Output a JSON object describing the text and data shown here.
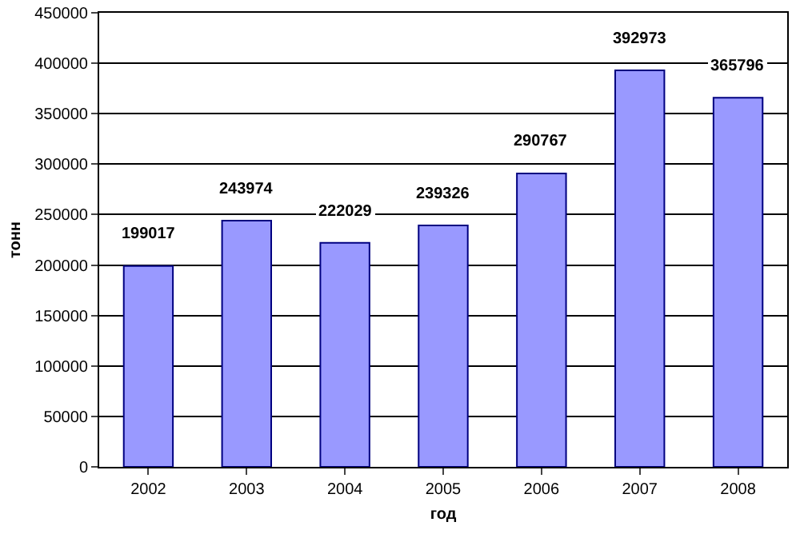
{
  "chart_data": {
    "type": "bar",
    "xlabel": "год",
    "ylabel": "тонн",
    "categories": [
      "2002",
      "2003",
      "2004",
      "2005",
      "2006",
      "2007",
      "2008"
    ],
    "values": [
      199017,
      243974,
      222029,
      239326,
      290767,
      392973,
      365796
    ],
    "color": "#9999ff",
    "ylim": [
      0,
      450000
    ],
    "yticks": [
      0,
      50000,
      100000,
      150000,
      200000,
      250000,
      300000,
      350000,
      400000,
      450000
    ],
    "grid": "y",
    "data_labels": true
  }
}
